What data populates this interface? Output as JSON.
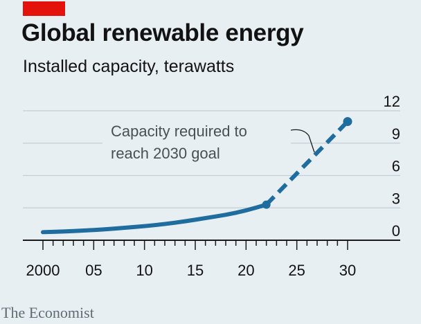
{
  "header": {
    "title": "Global renewable energy",
    "subtitle": "Installed capacity, terawatts"
  },
  "footer": {
    "source": "The Economist"
  },
  "colors": {
    "background": "#e7eff3",
    "brand_red": "#e3120b",
    "series": "#1f6c9e",
    "grid": "#c3cdd4",
    "text": "#121212"
  },
  "chart_data": {
    "type": "line",
    "title": "Global renewable energy",
    "subtitle": "Installed capacity, terawatts",
    "xlabel": "",
    "ylabel": "",
    "xlim": [
      2000,
      2030
    ],
    "ylim": [
      0,
      12
    ],
    "y_ticks": [
      0,
      3,
      6,
      9,
      12
    ],
    "y_tick_labels": [
      "0",
      "3",
      "6",
      "9",
      "12"
    ],
    "x_ticks": [
      2000,
      2005,
      2010,
      2015,
      2020,
      2025,
      2030
    ],
    "x_tick_labels": [
      "2000",
      "05",
      "10",
      "15",
      "20",
      "25",
      "30"
    ],
    "y_axis_side": "right",
    "grid": true,
    "series": [
      {
        "style": "solid",
        "x": [
          2000,
          2002,
          2004,
          2006,
          2008,
          2010,
          2012,
          2014,
          2016,
          2018,
          2020,
          2022
        ],
        "values": [
          0.75,
          0.8,
          0.9,
          1.0,
          1.15,
          1.3,
          1.5,
          1.75,
          2.05,
          2.35,
          2.75,
          3.3
        ]
      },
      {
        "style": "dashed",
        "x": [
          2022,
          2030
        ],
        "values": [
          3.3,
          11.0
        ]
      }
    ],
    "annotations": [
      {
        "text_lines": [
          "Capacity required to",
          "reach 2030 goal"
        ]
      }
    ]
  }
}
